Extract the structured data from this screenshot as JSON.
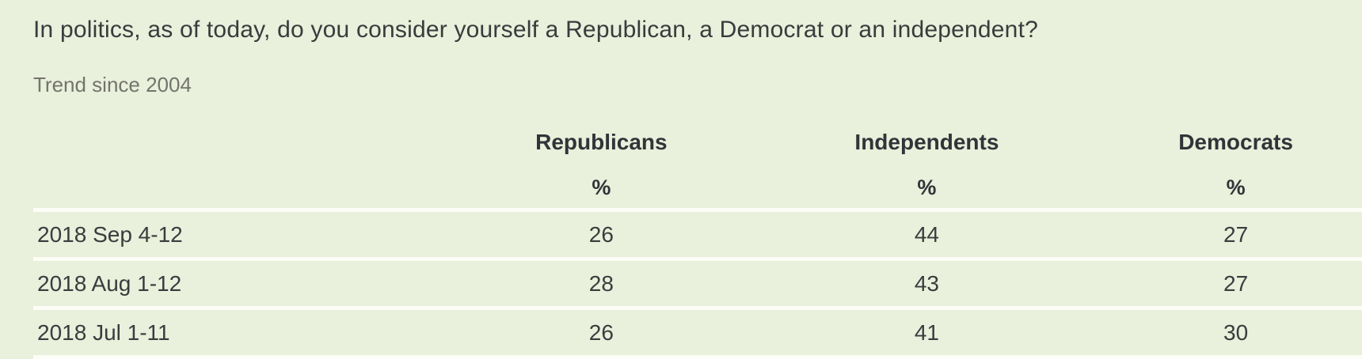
{
  "question_title": "In politics, as of today, do you consider yourself a Republican, a Democrat or an independent?",
  "subtitle": "Trend since 2004",
  "table": {
    "party_headers": [
      "Republicans",
      "Independents",
      "Democrats"
    ],
    "unit_row": [
      "%",
      "%",
      "%"
    ],
    "rows": [
      {
        "date": "2018 Sep 4-12",
        "values": [
          26,
          44,
          27
        ]
      },
      {
        "date": "2018 Aug 1-12",
        "values": [
          28,
          43,
          27
        ]
      },
      {
        "date": "2018 Jul 1-11",
        "values": [
          26,
          41,
          30
        ]
      }
    ]
  },
  "colors": {
    "background": "#e9f0db",
    "divider": "#fbfdf6",
    "heading_text": "#313438",
    "body_text": "#3a3c3e",
    "subtitle_text": "#73746c"
  },
  "chart_data": {
    "type": "table",
    "title": "In politics, as of today, do you consider yourself a Republican, a Democrat or an independent?",
    "subtitle": "Trend since 2004",
    "columns": [
      "",
      "Republicans",
      "Independents",
      "Democrats"
    ],
    "unit": "%",
    "rows": [
      [
        "2018 Sep 4-12",
        26,
        44,
        27
      ],
      [
        "2018 Aug 1-12",
        28,
        43,
        27
      ],
      [
        "2018 Jul 1-11",
        26,
        41,
        30
      ]
    ],
    "layout_hints": {
      "first_column_align": "left",
      "value_columns_align": "center",
      "row_dividers": true,
      "grid": "horizontal-only"
    }
  }
}
